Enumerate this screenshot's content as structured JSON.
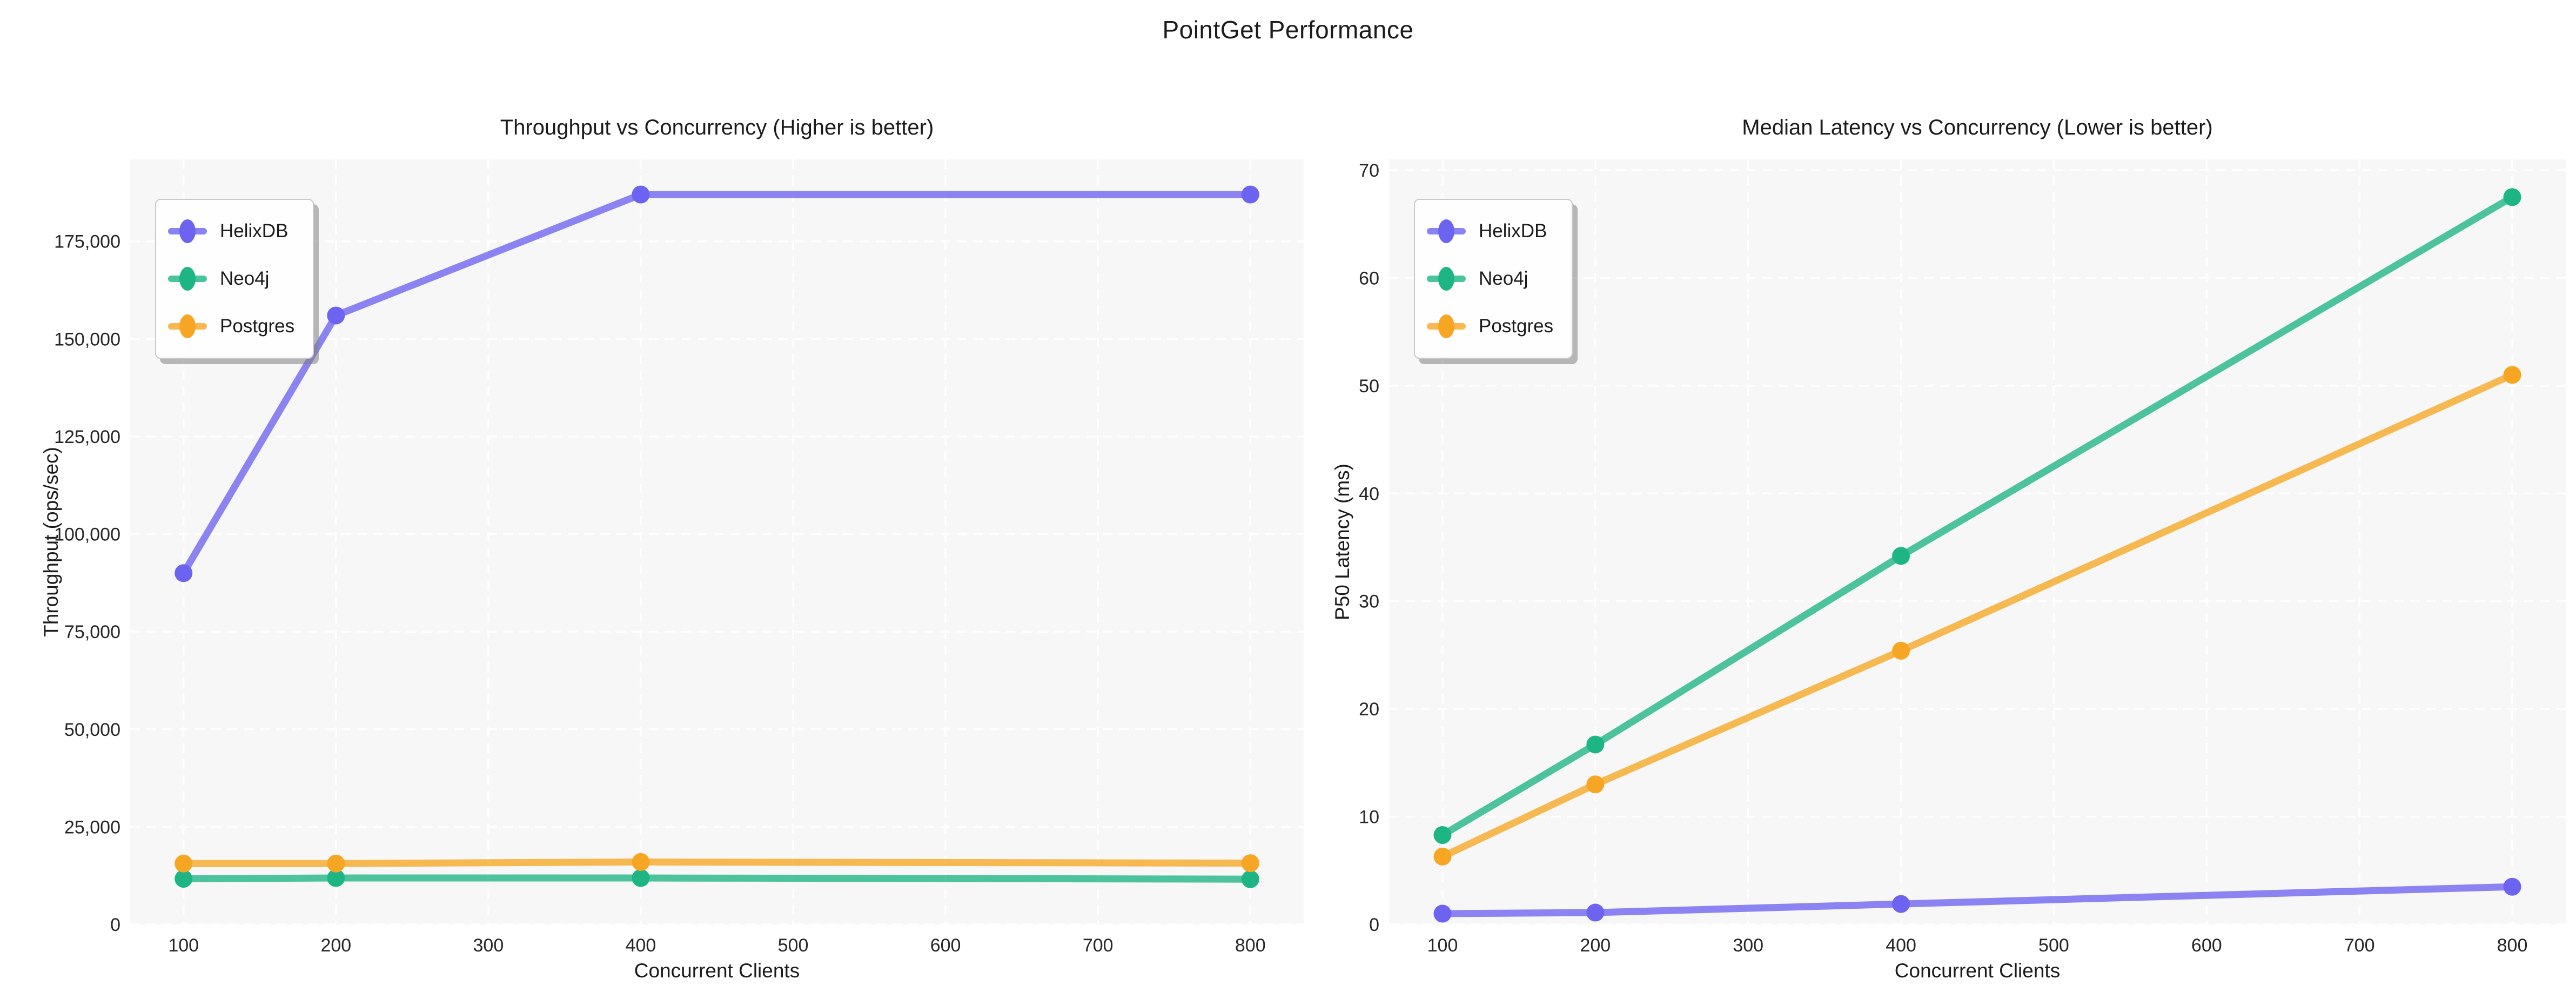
{
  "figure_title": "PointGet Performance",
  "chart_data": [
    {
      "type": "line",
      "title": "Throughput vs Concurrency (Higher is better)",
      "xlabel": "Concurrent Clients",
      "ylabel": "Throughput (ops/sec)",
      "panel_bg": "#f7f7f7",
      "x": [
        100,
        200,
        400,
        800
      ],
      "xticks": [
        100,
        200,
        300,
        400,
        500,
        600,
        700,
        800
      ],
      "yticks": [
        0,
        25000,
        50000,
        75000,
        100000,
        125000,
        150000,
        175000
      ],
      "xlim": [
        65,
        835
      ],
      "ylim": [
        0,
        196000
      ],
      "ytick_format": "comma",
      "grid": true,
      "legend_position": "upper-left",
      "series": [
        {
          "name": "HelixDB",
          "color": "#6c63f0",
          "values": [
            90000,
            156000,
            187000,
            187000
          ]
        },
        {
          "name": "Neo4j",
          "color": "#1db584",
          "values": [
            11700,
            11900,
            11900,
            11600
          ]
        },
        {
          "name": "Postgres",
          "color": "#f6a623",
          "values": [
            15600,
            15600,
            16000,
            15700
          ]
        }
      ]
    },
    {
      "type": "line",
      "title": "Median Latency vs Concurrency (Lower is better)",
      "xlabel": "Concurrent Clients",
      "ylabel": "P50 Latency (ms)",
      "panel_bg": "#f7f7f7",
      "x": [
        100,
        200,
        400,
        800
      ],
      "xticks": [
        100,
        200,
        300,
        400,
        500,
        600,
        700,
        800
      ],
      "yticks": [
        0,
        10,
        20,
        30,
        40,
        50,
        60,
        70
      ],
      "xlim": [
        65,
        835
      ],
      "ylim": [
        0,
        71
      ],
      "ytick_format": "plain",
      "grid": true,
      "legend_position": "upper-left",
      "series": [
        {
          "name": "HelixDB",
          "color": "#6c63f0",
          "values": [
            1.0,
            1.1,
            1.9,
            3.5
          ]
        },
        {
          "name": "Neo4j",
          "color": "#1db584",
          "values": [
            8.3,
            16.7,
            34.2,
            67.5
          ]
        },
        {
          "name": "Postgres",
          "color": "#f6a623",
          "values": [
            6.3,
            13.0,
            25.4,
            51.0
          ]
        }
      ]
    }
  ]
}
